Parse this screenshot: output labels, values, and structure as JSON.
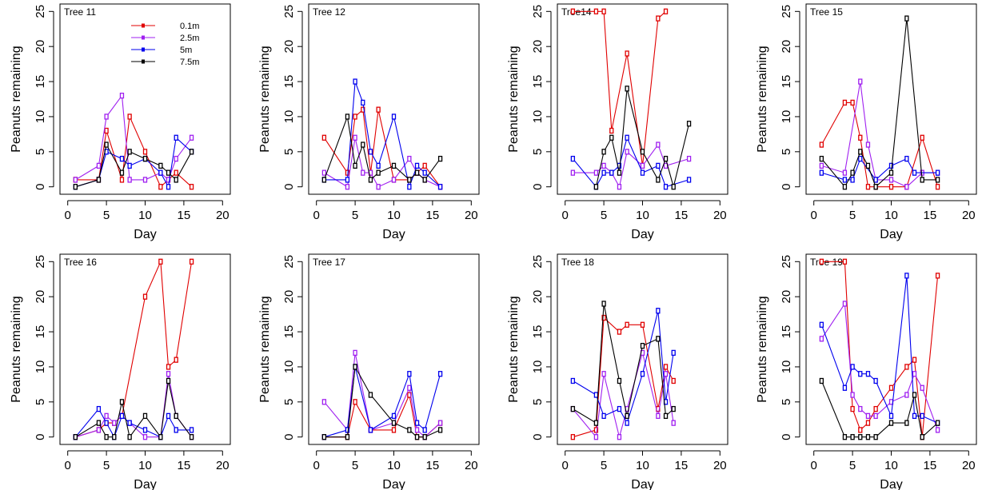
{
  "chart_data": {
    "type": "line",
    "xlabel": "Day",
    "ylabel": "Peanuts remaining",
    "xlim": [
      0,
      20
    ],
    "ylim": [
      0,
      25
    ],
    "xticks": [
      0,
      5,
      10,
      15,
      20
    ],
    "yticks": [
      0,
      5,
      10,
      15,
      20,
      25
    ],
    "grid": false,
    "legend_position": "top-center of first panel",
    "series_styles": [
      {
        "name": "0.1m",
        "color": "#e00000"
      },
      {
        "name": "2.5m",
        "color": "#a020f0"
      },
      {
        "name": "5m",
        "color": "#0000ee"
      },
      {
        "name": "7.5m",
        "color": "#000000"
      }
    ],
    "panels": [
      {
        "title": "Tree 11",
        "series": [
          {
            "name": "0.1m",
            "x": [
              1,
              4,
              5,
              7,
              8,
              10,
              12,
              13,
              14,
              16
            ],
            "y": [
              1,
              1,
              8,
              1,
              10,
              5,
              0,
              1,
              2,
              0
            ]
          },
          {
            "name": "2.5m",
            "x": [
              1,
              4,
              5,
              7,
              8,
              10,
              12,
              13,
              14,
              16
            ],
            "y": [
              1,
              3,
              10,
              13,
              1,
              1,
              2,
              1,
              4,
              7
            ]
          },
          {
            "name": "5m",
            "x": [
              1,
              4,
              5,
              7,
              8,
              10,
              12,
              13,
              14,
              16
            ],
            "y": [
              0,
              1,
              5,
              4,
              3,
              4,
              2,
              0,
              7,
              5
            ]
          },
          {
            "name": "7.5m",
            "x": [
              1,
              4,
              5,
              7,
              8,
              10,
              12,
              13,
              14,
              16
            ],
            "y": [
              0,
              1,
              6,
              2,
              5,
              4,
              3,
              2,
              1,
              5
            ]
          }
        ]
      },
      {
        "title": "Tree 12",
        "series": [
          {
            "name": "0.1m",
            "x": [
              1,
              4,
              5,
              6,
              7,
              8,
              10,
              12,
              13,
              14,
              16
            ],
            "y": [
              7,
              2,
              10,
              11,
              2,
              11,
              1,
              1,
              2,
              3,
              0
            ]
          },
          {
            "name": "2.5m",
            "x": [
              1,
              4,
              5,
              6,
              7,
              8,
              10,
              12,
              13,
              14,
              16
            ],
            "y": [
              2,
              0,
              7,
              2,
              2,
              0,
              1,
              4,
              2,
              1,
              0
            ]
          },
          {
            "name": "5m",
            "x": [
              1,
              4,
              5,
              6,
              7,
              8,
              10,
              12,
              13,
              14,
              16
            ],
            "y": [
              1,
              1,
              15,
              12,
              5,
              3,
              10,
              0,
              3,
              2,
              0
            ]
          },
          {
            "name": "7.5m",
            "x": [
              1,
              4,
              5,
              6,
              7,
              8,
              10,
              12,
              13,
              14,
              16
            ],
            "y": [
              1,
              10,
              3,
              6,
              1,
              2,
              3,
              1,
              2,
              1,
              4
            ]
          }
        ]
      },
      {
        "title": "Tree14",
        "series": [
          {
            "name": "0.1m",
            "x": [
              1,
              4,
              5,
              6,
              8,
              10,
              12,
              13
            ],
            "y": [
              25,
              25,
              25,
              8,
              19,
              3,
              24,
              25
            ]
          },
          {
            "name": "2.5m",
            "x": [
              1,
              4,
              5,
              6,
              7,
              8,
              10,
              12,
              13,
              16
            ],
            "y": [
              2,
              2,
              3,
              2,
              0,
              5,
              3,
              6,
              3,
              4
            ]
          },
          {
            "name": "5m",
            "x": [
              1,
              4,
              5,
              6,
              7,
              8,
              10,
              12,
              13,
              16
            ],
            "y": [
              4,
              0,
              2,
              2,
              3,
              7,
              2,
              3,
              0,
              1
            ]
          },
          {
            "name": "7.5m",
            "x": [
              4,
              5,
              6,
              7,
              8,
              10,
              12,
              13,
              14,
              16
            ],
            "y": [
              0,
              5,
              7,
              2,
              14,
              5,
              1,
              4,
              0,
              9
            ]
          }
        ]
      },
      {
        "title": "Tree 15",
        "series": [
          {
            "name": "0.1m",
            "x": [
              1,
              4,
              5,
              6,
              7,
              8,
              10,
              12,
              14,
              16
            ],
            "y": [
              6,
              12,
              12,
              7,
              0,
              0,
              0,
              0,
              7,
              0
            ]
          },
          {
            "name": "2.5m",
            "x": [
              1,
              4,
              6,
              7,
              8,
              10,
              12,
              14,
              16
            ],
            "y": [
              3,
              2,
              15,
              6,
              1,
              1,
              0,
              2,
              2
            ]
          },
          {
            "name": "5m",
            "x": [
              1,
              4,
              5,
              6,
              8,
              10,
              12,
              13,
              16
            ],
            "y": [
              2,
              1,
              1,
              4,
              1,
              3,
              4,
              2,
              2
            ]
          },
          {
            "name": "7.5m",
            "x": [
              1,
              4,
              5,
              6,
              7,
              8,
              10,
              12,
              14,
              16
            ],
            "y": [
              4,
              0,
              2,
              5,
              3,
              0,
              2,
              24,
              1,
              1
            ]
          }
        ]
      },
      {
        "title": "Tree 16",
        "series": [
          {
            "name": "0.1m",
            "x": [
              1,
              4,
              5,
              6,
              7,
              10,
              12,
              13,
              14,
              16
            ],
            "y": [
              0,
              1,
              2,
              2,
              3,
              20,
              25,
              10,
              11,
              25
            ]
          },
          {
            "name": "2.5m",
            "x": [
              1,
              4,
              5,
              6,
              7,
              8,
              10,
              12,
              13,
              14,
              16
            ],
            "y": [
              0,
              1,
              3,
              2,
              3,
              2,
              0,
              0,
              9,
              3,
              0
            ]
          },
          {
            "name": "5m",
            "x": [
              1,
              4,
              5,
              6,
              7,
              8,
              10,
              12,
              13,
              14,
              16
            ],
            "y": [
              0,
              4,
              2,
              0,
              3,
              2,
              1,
              0,
              3,
              1,
              1
            ]
          },
          {
            "name": "7.5m",
            "x": [
              1,
              4,
              5,
              6,
              7,
              8,
              10,
              12,
              13,
              14,
              16
            ],
            "y": [
              0,
              2,
              0,
              0,
              5,
              0,
              3,
              0,
              8,
              3,
              0
            ]
          }
        ]
      },
      {
        "title": "Tree 17",
        "series": [
          {
            "name": "0.1m",
            "x": [
              1,
              4,
              5,
              7,
              10,
              12,
              13,
              14,
              16
            ],
            "y": [
              0,
              0,
              5,
              1,
              1,
              6,
              0,
              0,
              2
            ]
          },
          {
            "name": "2.5m",
            "x": [
              1,
              4,
              5,
              7,
              10,
              12,
              13,
              14,
              16
            ],
            "y": [
              5,
              1,
              12,
              1,
              2,
              7,
              1,
              0,
              2
            ]
          },
          {
            "name": "5m",
            "x": [
              1,
              4,
              5,
              7,
              10,
              12,
              13,
              14,
              16
            ],
            "y": [
              0,
              1,
              10,
              1,
              3,
              9,
              2,
              1,
              9
            ]
          },
          {
            "name": "7.5m",
            "x": [
              1,
              4,
              5,
              7,
              10,
              12,
              13,
              14,
              16
            ],
            "y": [
              0,
              0,
              10,
              6,
              2,
              1,
              0,
              0,
              1
            ]
          }
        ]
      },
      {
        "title": "Tree 18",
        "series": [
          {
            "name": "0.1m",
            "x": [
              1,
              4,
              5,
              7,
              8,
              10,
              12,
              13,
              14
            ],
            "y": [
              0,
              1,
              17,
              15,
              16,
              16,
              4,
              10,
              8
            ]
          },
          {
            "name": "2.5m",
            "x": [
              1,
              4,
              5,
              7,
              8,
              10,
              12,
              13,
              14
            ],
            "y": [
              4,
              0,
              9,
              0,
              4,
              12,
              3,
              9,
              2
            ]
          },
          {
            "name": "5m",
            "x": [
              1,
              4,
              5,
              7,
              8,
              10,
              12,
              13,
              14
            ],
            "y": [
              8,
              6,
              3,
              4,
              2,
              9,
              18,
              5,
              12
            ]
          },
          {
            "name": "7.5m",
            "x": [
              1,
              4,
              5,
              7,
              8,
              10,
              12,
              13,
              14
            ],
            "y": [
              4,
              2,
              19,
              8,
              3,
              13,
              14,
              3,
              4
            ]
          }
        ]
      },
      {
        "title": "Tree 19",
        "series": [
          {
            "name": "0.1m",
            "x": [
              1,
              4,
              5,
              6,
              7,
              8,
              10,
              12,
              13,
              14,
              16
            ],
            "y": [
              25,
              25,
              4,
              1,
              2,
              4,
              7,
              10,
              11,
              0,
              23
            ]
          },
          {
            "name": "2.5m",
            "x": [
              1,
              4,
              5,
              6,
              7,
              8,
              10,
              12,
              13,
              14,
              16
            ],
            "y": [
              14,
              19,
              6,
              4,
              3,
              3,
              5,
              6,
              9,
              7,
              1
            ]
          },
          {
            "name": "5m",
            "x": [
              1,
              4,
              5,
              6,
              7,
              8,
              10,
              12,
              13,
              14,
              16
            ],
            "y": [
              16,
              7,
              10,
              9,
              9,
              8,
              3,
              23,
              3,
              3,
              2
            ]
          },
          {
            "name": "7.5m",
            "x": [
              1,
              4,
              5,
              6,
              7,
              8,
              10,
              12,
              13,
              14,
              16
            ],
            "y": [
              8,
              0,
              0,
              0,
              0,
              0,
              2,
              2,
              6,
              0,
              2
            ]
          }
        ]
      }
    ]
  }
}
